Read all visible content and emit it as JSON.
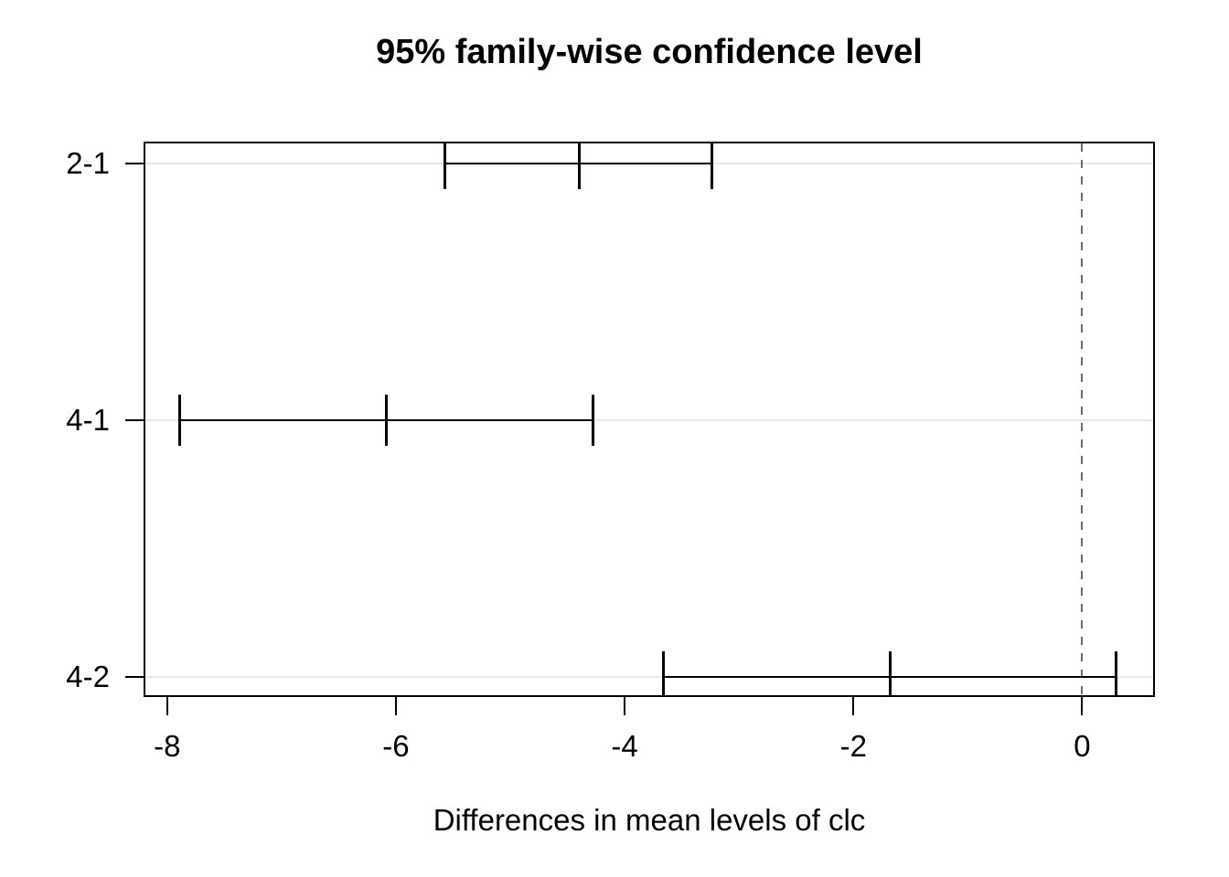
{
  "figure": {
    "title": "95% family-wise confidence level",
    "x_axis_label": "Differences in mean levels of clc"
  },
  "chart_data": {
    "type": "errorbar",
    "orientation": "horizontal",
    "title": "95% family-wise confidence level",
    "xlabel": "Differences in mean levels of clc",
    "ylabel": "",
    "comparisons": [
      {
        "label": "2-1",
        "lower": -5.57,
        "diff": -4.4,
        "upper": -3.24
      },
      {
        "label": "4-1",
        "lower": -7.89,
        "diff": -6.08,
        "upper": -4.28
      },
      {
        "label": "4-2",
        "lower": -3.66,
        "diff": -1.68,
        "upper": 0.3
      }
    ],
    "y_positions": [
      3,
      2,
      1
    ],
    "x_ticks": [
      -8,
      -6,
      -4,
      -2,
      0
    ],
    "xlim": [
      -8.19,
      0.62
    ],
    "ylim": [
      0.93,
      3.08
    ],
    "zero_line": {
      "x": 0,
      "style": "dashed"
    },
    "grid": {
      "horizontal": true
    },
    "legend": null
  },
  "colors": {
    "background": "#ffffff",
    "line": "#000000",
    "text": "#000000",
    "grid": "#e8e8e8",
    "zero_line": "#6b6b6b"
  }
}
